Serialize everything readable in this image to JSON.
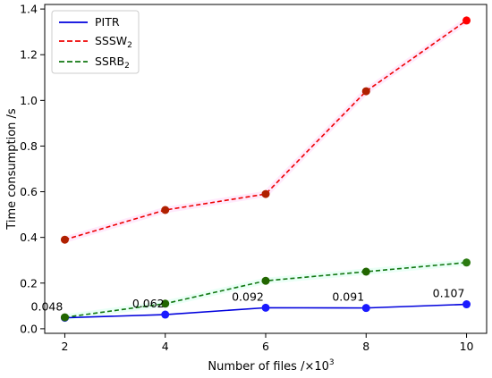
{
  "chart_data": {
    "type": "line",
    "xlabel": "Number of files /×10",
    "xlabel_exp": "3",
    "ylabel": "Time consumption /s",
    "xlim": [
      1.6,
      10.4
    ],
    "ylim": [
      -0.02,
      1.42
    ],
    "x": [
      2,
      4,
      6,
      8,
      10
    ],
    "x_ticks": [
      "2",
      "4",
      "6",
      "8",
      "10"
    ],
    "y_ticks": [
      0.0,
      0.2,
      0.4,
      0.6,
      0.8,
      1.0,
      1.2,
      1.4
    ],
    "y_tick_labels": [
      "0.0",
      "0.2",
      "0.4",
      "0.6",
      "0.8",
      "1.0",
      "1.2",
      "1.4"
    ],
    "grid": false,
    "legend_position": "top-left",
    "series": [
      {
        "name": "PITR",
        "name_sub": "",
        "color": "#0000dd",
        "marker_color": "#1a1aff",
        "dashed": false,
        "values": [
          0.048,
          0.062,
          0.092,
          0.091,
          0.107
        ]
      },
      {
        "name": "SSSW",
        "name_sub": "2",
        "color": "#ee0000",
        "marker_color": "#b02000",
        "dashed": true,
        "values": [
          0.39,
          0.52,
          0.59,
          1.04,
          1.35
        ]
      },
      {
        "name": "SSRB",
        "name_sub": "2",
        "color": "#117711",
        "marker_color": "#226600",
        "dashed": true,
        "values": [
          0.05,
          0.11,
          0.21,
          0.25,
          0.29
        ]
      }
    ],
    "marker_colors_last": [
      "#1a1aff",
      "#ff0000",
      "#2a7a10"
    ],
    "data_labels": [
      "0.048",
      "0.062",
      "0.092",
      "0.091",
      "0.107"
    ]
  }
}
